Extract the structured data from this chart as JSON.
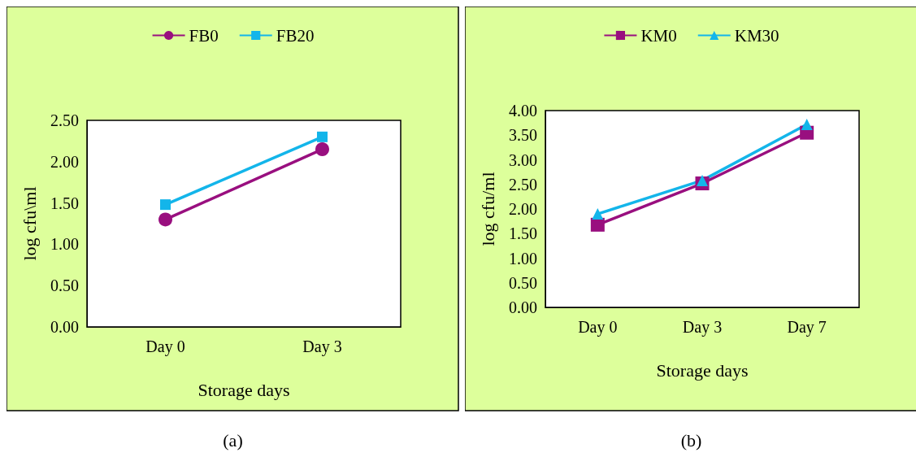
{
  "chart_data": [
    {
      "type": "line",
      "categories": [
        "Day 0",
        "Day 3"
      ],
      "xlabel": "Storage days",
      "ylabel": "log cfu\\ml",
      "ylim": [
        0,
        2.5
      ],
      "yticks": [
        {
          "value": 0,
          "label": "0.00"
        },
        {
          "value": 0.5,
          "label": "0.50"
        },
        {
          "value": 1,
          "label": "1.00"
        },
        {
          "value": 1.5,
          "label": "1.50"
        },
        {
          "value": 2,
          "label": "2.00"
        },
        {
          "value": 2.5,
          "label": "2.50"
        }
      ],
      "grid": false,
      "legend": "top",
      "annotations": [
        "(a)"
      ],
      "series": [
        {
          "name": "FB0",
          "color": "#990f7f",
          "marker": "circle",
          "values": [
            1.3,
            2.15
          ]
        },
        {
          "name": "FB20",
          "color": "#13b5ea",
          "marker": "square",
          "values": [
            1.48,
            2.3
          ]
        }
      ]
    },
    {
      "type": "line",
      "categories": [
        "Day 0",
        "Day 3",
        "Day 7"
      ],
      "xlabel": "Storage days",
      "ylabel": "log cfu/ml",
      "ylim": [
        0,
        4
      ],
      "yticks": [
        {
          "value": 0,
          "label": "0.00"
        },
        {
          "value": 0.5,
          "label": "0.50"
        },
        {
          "value": 1,
          "label": "1.00"
        },
        {
          "value": 1.5,
          "label": "1.50"
        },
        {
          "value": 2,
          "label": "2.00"
        },
        {
          "value": 2.5,
          "label": "2.50"
        },
        {
          "value": 3,
          "label": "3.00"
        },
        {
          "value": 3.5,
          "label": "3.50"
        },
        {
          "value": 4,
          "label": "4.00"
        }
      ],
      "grid": false,
      "legend": "top",
      "annotations": [
        "(b)"
      ],
      "series": [
        {
          "name": "KM0",
          "color": "#990f7f",
          "marker": "square",
          "values": [
            1.68,
            2.52,
            3.55
          ]
        },
        {
          "name": "KM30",
          "color": "#13b5ea",
          "marker": "triangle",
          "values": [
            1.9,
            2.58,
            3.72
          ]
        }
      ]
    }
  ]
}
